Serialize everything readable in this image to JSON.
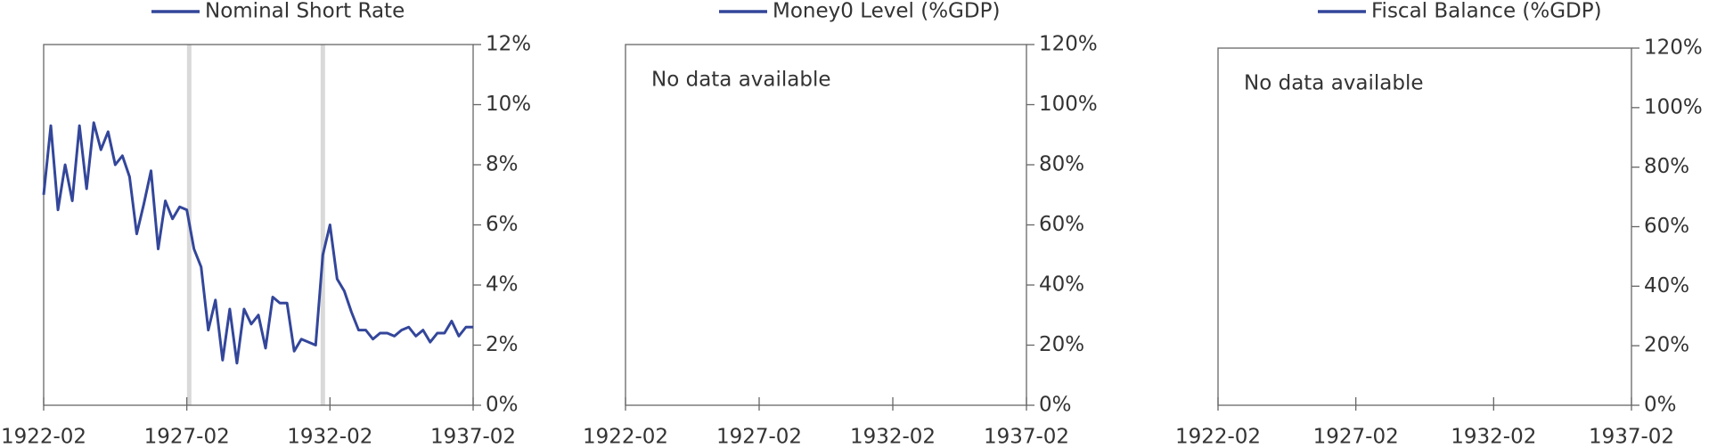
{
  "chart_data": [
    {
      "type": "line",
      "series": [
        {
          "name": "Nominal Short Rate",
          "color": "#33469a",
          "values": [
            7.0,
            9.3,
            6.5,
            8.0,
            6.8,
            9.3,
            7.2,
            9.4,
            8.5,
            9.1,
            8.0,
            8.3,
            7.6,
            5.7,
            6.7,
            7.8,
            5.2,
            6.8,
            6.2,
            6.6,
            6.5,
            5.2,
            4.6,
            2.5,
            3.5,
            1.5,
            3.2,
            1.4,
            3.2,
            2.7,
            3.0,
            1.9,
            3.6,
            3.4,
            3.4,
            1.8,
            2.2,
            2.1,
            2.0,
            5.0,
            6.0,
            4.2,
            3.8,
            3.1,
            2.5,
            2.5,
            2.2,
            2.4,
            2.4,
            2.3,
            2.5,
            2.6,
            2.3,
            2.5,
            2.1,
            2.4,
            2.4,
            2.8,
            2.3,
            2.6,
            2.6
          ]
        }
      ],
      "x": [
        "1922-02",
        "1922-05",
        "1922-08",
        "1922-11",
        "1923-02",
        "1923-05",
        "1923-08",
        "1923-11",
        "1924-02",
        "1924-05",
        "1924-08",
        "1924-11",
        "1925-02",
        "1925-05",
        "1925-08",
        "1925-11",
        "1926-02",
        "1926-05",
        "1926-08",
        "1926-11",
        "1927-02",
        "1927-05",
        "1927-08",
        "1927-11",
        "1928-02",
        "1928-05",
        "1928-08",
        "1928-11",
        "1929-02",
        "1929-05",
        "1929-08",
        "1929-11",
        "1930-02",
        "1930-05",
        "1930-08",
        "1930-11",
        "1931-02",
        "1931-05",
        "1931-08",
        "1931-11",
        "1932-02",
        "1932-05",
        "1932-08",
        "1932-11",
        "1933-02",
        "1933-05",
        "1933-08",
        "1933-11",
        "1934-02",
        "1934-05",
        "1934-08",
        "1934-11",
        "1935-02",
        "1935-05",
        "1935-08",
        "1935-11",
        "1936-02",
        "1936-05",
        "1936-08",
        "1936-11",
        "1937-02"
      ],
      "highlights": [
        "1927-03",
        "1931-11"
      ],
      "highlight_color": "#d9d9d9",
      "xlim": [
        "1922-02",
        "1937-02"
      ],
      "xticks": [
        "1922-02",
        "1927-02",
        "1932-02",
        "1937-02"
      ],
      "ylim": [
        0,
        12
      ],
      "yticks": [
        {
          "value": 0,
          "label": "0%"
        },
        {
          "value": 2,
          "label": "2%"
        },
        {
          "value": 4,
          "label": "4%"
        },
        {
          "value": 6,
          "label": "6%"
        },
        {
          "value": 8,
          "label": "8%"
        },
        {
          "value": 10,
          "label": "10%"
        },
        {
          "value": 12,
          "label": "12%"
        }
      ]
    },
    {
      "type": "line",
      "series": [
        {
          "name": "Money0 Level (%GDP)",
          "color": "#33469a",
          "values": []
        }
      ],
      "x": [],
      "annotation": "No data available",
      "xlim": [
        "1922-02",
        "1937-02"
      ],
      "xticks": [
        "1922-02",
        "1927-02",
        "1932-02",
        "1937-02"
      ],
      "ylim": [
        0,
        120
      ],
      "yticks": [
        {
          "value": 0,
          "label": "0%"
        },
        {
          "value": 20,
          "label": "20%"
        },
        {
          "value": 40,
          "label": "40%"
        },
        {
          "value": 60,
          "label": "60%"
        },
        {
          "value": 80,
          "label": "80%"
        },
        {
          "value": 100,
          "label": "100%"
        },
        {
          "value": 120,
          "label": "120%"
        }
      ]
    },
    {
      "type": "line",
      "series": [
        {
          "name": "Fiscal Balance (%GDP)",
          "color": "#33469a",
          "values": []
        }
      ],
      "x": [],
      "annotation": "No data available",
      "xlim": [
        "1922-02",
        "1937-02"
      ],
      "xticks": [
        "1922-02",
        "1927-02",
        "1932-02",
        "1937-02"
      ],
      "ylim": [
        0,
        120
      ],
      "yticks": [
        {
          "value": 0,
          "label": "0%"
        },
        {
          "value": 20,
          "label": "20%"
        },
        {
          "value": 40,
          "label": "40%"
        },
        {
          "value": 60,
          "label": "60%"
        },
        {
          "value": 80,
          "label": "80%"
        },
        {
          "value": 100,
          "label": "100%"
        },
        {
          "value": 120,
          "label": "120%"
        }
      ]
    }
  ]
}
